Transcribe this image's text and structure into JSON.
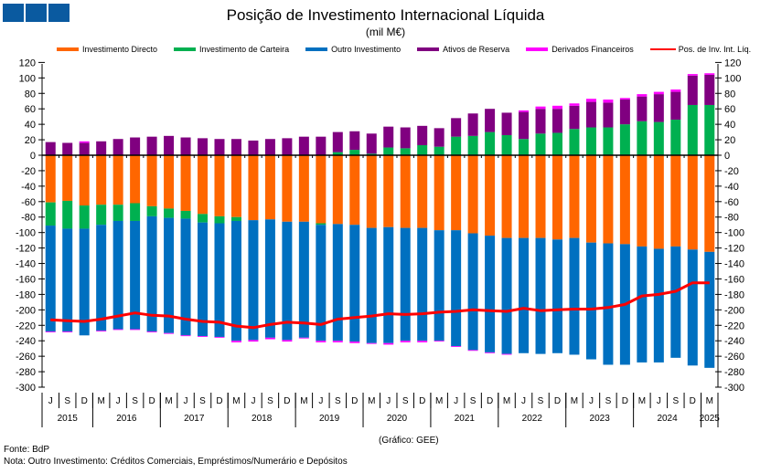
{
  "header": {
    "title": "Posição de Investimento Internacional Líquida",
    "subtitle": "(mil M€)",
    "logo": "three-blue-squares-logo"
  },
  "legend": [
    {
      "label": "Investimento Directo",
      "color": "#ff6600",
      "kind": "bar"
    },
    {
      "label": "Investimento de Carteira",
      "color": "#00b050",
      "kind": "bar"
    },
    {
      "label": "Outro Investimento",
      "color": "#0070c0",
      "kind": "bar"
    },
    {
      "label": "Ativos de Reserva",
      "color": "#800080",
      "kind": "bar"
    },
    {
      "label": "Derivados Financeiros",
      "color": "#ff00ff",
      "kind": "bar"
    },
    {
      "label": "Pos. de Inv. Int. Líq.",
      "color": "#ff0000",
      "kind": "line"
    }
  ],
  "footer": {
    "credit": "(Gráfico: GEE)",
    "source": "Fonte: BdP",
    "note": "Nota: Outro Investimento:  Créditos Comerciais, Empréstimos/Numerário  e Depósitos"
  },
  "chart_data": {
    "type": "bar",
    "stacked": true,
    "title": "Posição de Investimento Internacional Líquida",
    "subtitle": "(mil M€)",
    "xlabel": "",
    "ylabel": "mil M€",
    "ylim": [
      -300,
      120
    ],
    "yticks": [
      120,
      100,
      80,
      60,
      40,
      20,
      0,
      -20,
      -40,
      -60,
      -80,
      -100,
      -120,
      -140,
      -160,
      -180,
      -200,
      -220,
      -240,
      -260,
      -280,
      -300
    ],
    "y_axis_both_sides": true,
    "legend_position": "top",
    "categories": [
      "J",
      "S",
      "D",
      "M",
      "J",
      "S",
      "D",
      "M",
      "J",
      "S",
      "D",
      "M",
      "J",
      "S",
      "D",
      "M",
      "J",
      "S",
      "D",
      "M",
      "J",
      "S",
      "D",
      "M",
      "J",
      "S",
      "D",
      "M",
      "J",
      "S",
      "D",
      "M",
      "J",
      "S",
      "D",
      "M",
      "J",
      "S",
      "D",
      "M"
    ],
    "years": [
      {
        "label": "2015",
        "count": 3
      },
      {
        "label": "2016",
        "count": 4
      },
      {
        "label": "2017",
        "count": 4
      },
      {
        "label": "2018",
        "count": 4
      },
      {
        "label": "2019",
        "count": 4
      },
      {
        "label": "2020",
        "count": 4
      },
      {
        "label": "2021",
        "count": 4
      },
      {
        "label": "2022",
        "count": 4
      },
      {
        "label": "2023",
        "count": 4
      },
      {
        "label": "2024",
        "count": 4
      },
      {
        "label": "2025",
        "count": 1
      }
    ],
    "series": [
      {
        "name": "Investimento Directo",
        "color": "#ff6600",
        "kind": "bar",
        "values": [
          -61,
          -59,
          -65,
          -64,
          -64,
          -62,
          -66,
          -69,
          -72,
          -76,
          -79,
          -80,
          -84,
          -83,
          -86,
          -86,
          -88,
          -89,
          -90,
          -94,
          -93,
          -94,
          -94,
          -97,
          -97,
          -101,
          -104,
          -107,
          -107,
          -107,
          -109,
          -107,
          -113,
          -114,
          -115,
          -118,
          -121,
          -118,
          -122,
          -125
        ]
      },
      {
        "name": "Investimento de Carteira",
        "color": "#00b050",
        "kind": "bar",
        "values": [
          -30,
          -36,
          -30,
          -26,
          -21,
          -23,
          -13,
          -12,
          -10,
          -11,
          -9,
          -5,
          0,
          0,
          0,
          0,
          -2,
          4,
          7,
          2,
          10,
          9,
          13,
          11,
          24,
          25,
          30,
          26,
          21,
          28,
          29,
          34,
          36,
          36,
          40,
          44,
          43,
          46,
          65,
          65
        ]
      },
      {
        "name": "Outro Investimento",
        "color": "#0070c0",
        "kind": "bar",
        "values": [
          -137,
          -133,
          -138,
          -137,
          -140,
          -140,
          -149,
          -149,
          -151,
          -147,
          -147,
          -155,
          -155,
          -153,
          -153,
          -150,
          -150,
          -151,
          -151,
          -149,
          -150,
          -146,
          -146,
          -143,
          -150,
          -151,
          -151,
          -150,
          -149,
          -150,
          -147,
          -151,
          -151,
          -157,
          -156,
          -150,
          -147,
          -144,
          -150,
          -150
        ]
      },
      {
        "name": "Ativos de Reserva",
        "color": "#800080",
        "kind": "bar",
        "values": [
          17,
          16,
          16,
          18,
          21,
          23,
          24,
          25,
          23,
          22,
          21,
          21,
          19,
          21,
          22,
          24,
          24,
          26,
          24,
          26,
          27,
          27,
          25,
          24,
          24,
          29,
          30,
          29,
          35,
          32,
          31,
          30,
          33,
          32,
          32,
          32,
          36,
          36,
          38,
          39
        ]
      },
      {
        "name": "Derivados Financeiros",
        "color": "#ff00ff",
        "kind": "bar",
        "values": [
          -1,
          -1,
          2,
          -1,
          -1,
          -1,
          -1,
          -1,
          -1,
          -1,
          -1,
          -2,
          -2,
          -2,
          -2,
          -1,
          -2,
          -2,
          -2,
          -1,
          -2,
          -2,
          -2,
          -1,
          -1,
          -1,
          -1,
          -1,
          2,
          3,
          4,
          3,
          4,
          4,
          2,
          3,
          3,
          3,
          2,
          2
        ]
      },
      {
        "name": "Pos. de Inv. Int. Líq.",
        "color": "#ff0000",
        "kind": "line",
        "values": [
          -213,
          -214,
          -215,
          -212,
          -208,
          -204,
          -207,
          -208,
          -212,
          -215,
          -216,
          -221,
          -223,
          -219,
          -216,
          -217,
          -219,
          -212,
          -210,
          -208,
          -205,
          -206,
          -205,
          -203,
          -202,
          -200,
          -201,
          -202,
          -198,
          -201,
          -200,
          -199,
          -199,
          -197,
          -193,
          -182,
          -180,
          -176,
          -165,
          -165
        ]
      }
    ]
  }
}
